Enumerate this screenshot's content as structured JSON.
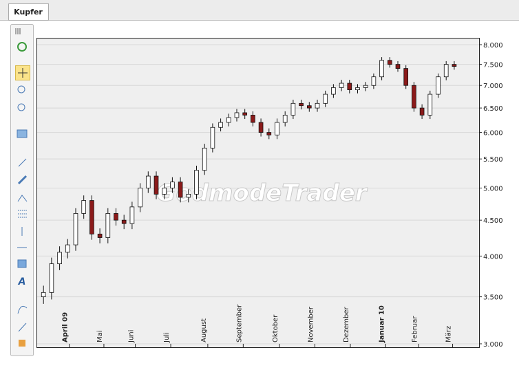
{
  "tab": "Kupfer",
  "chart_data": {
    "type": "candlestick",
    "watermark": "GodmodeTrader",
    "log_scale": true,
    "grid": true,
    "up_color": "#ffffff",
    "down_color": "#8b1a1a",
    "open": [
      3500,
      3550,
      3900,
      4050,
      4150,
      4600,
      4800,
      4300,
      4250,
      4600,
      4500,
      4450,
      4700,
      5000,
      5200,
      4900,
      5000,
      5100,
      4850,
      4900,
      5300,
      5700,
      6100,
      6200,
      6300,
      6400,
      6350,
      6200,
      6000,
      5950,
      6200,
      6350,
      6600,
      6550,
      6500,
      6600,
      6800,
      6950,
      7050,
      6900,
      6950,
      7000,
      7200,
      7600,
      7500,
      7400,
      7000,
      6500,
      6350,
      6800,
      7200,
      7500
    ],
    "high": [
      3630,
      3980,
      4130,
      4230,
      4680,
      4880,
      4880,
      4380,
      4680,
      4680,
      4580,
      4780,
      5080,
      5280,
      5280,
      5080,
      5180,
      5180,
      4980,
      5380,
      5780,
      6180,
      6280,
      6380,
      6480,
      6480,
      6430,
      6280,
      6080,
      6280,
      6430,
      6680,
      6680,
      6630,
      6680,
      6880,
      7030,
      7130,
      7130,
      7030,
      7080,
      7280,
      7680,
      7680,
      7580,
      7480,
      7080,
      6580,
      6880,
      7280,
      7580,
      7580
    ],
    "low": [
      3420,
      3470,
      3820,
      3970,
      4070,
      4520,
      4220,
      4170,
      4170,
      4420,
      4370,
      4370,
      4620,
      4920,
      4820,
      4820,
      4920,
      4770,
      4770,
      4820,
      5220,
      5620,
      6020,
      6120,
      6220,
      6270,
      6120,
      5920,
      5870,
      5870,
      6120,
      6270,
      6470,
      6420,
      6420,
      6520,
      6720,
      6870,
      6820,
      6820,
      6870,
      6920,
      7120,
      7420,
      7320,
      6920,
      6420,
      6270,
      6270,
      6720,
      7120,
      7370
    ],
    "close": [
      3550,
      3900,
      4050,
      4150,
      4600,
      4800,
      4300,
      4250,
      4600,
      4500,
      4450,
      4700,
      5000,
      5200,
      4900,
      5000,
      5100,
      4850,
      4900,
      5300,
      5700,
      6100,
      6200,
      6300,
      6400,
      6350,
      6200,
      6000,
      5950,
      6200,
      6350,
      6600,
      6550,
      6500,
      6600,
      6800,
      6950,
      7050,
      6900,
      6950,
      7000,
      7200,
      7600,
      7500,
      7400,
      7000,
      6500,
      6350,
      6800,
      7200,
      7500,
      7450
    ],
    "xlim": [
      -0.7,
      54
    ],
    "xticks": [
      {
        "value": 3.2,
        "label": "April 09"
      },
      {
        "value": 7.5,
        "label": "Mai"
      },
      {
        "value": 11.4,
        "label": "Juni"
      },
      {
        "value": 15.8,
        "label": "Juli"
      },
      {
        "value": 20.4,
        "label": "August"
      },
      {
        "value": 24.8,
        "label": "September"
      },
      {
        "value": 29.3,
        "label": "Oktober"
      },
      {
        "value": 33.7,
        "label": "November"
      },
      {
        "value": 38.1,
        "label": "Dezember"
      },
      {
        "value": 42.5,
        "label": "Januar 10"
      },
      {
        "value": 46.6,
        "label": "Februar"
      },
      {
        "value": 50.8,
        "label": "März"
      }
    ],
    "ylim": [
      3000,
      8000
    ],
    "yticks": [
      {
        "value": 3000,
        "label": "3.000"
      },
      {
        "value": 3500,
        "label": "3.500"
      },
      {
        "value": 4000,
        "label": "4.000"
      },
      {
        "value": 4500,
        "label": "4.500"
      },
      {
        "value": 5000,
        "label": "5.000"
      },
      {
        "value": 5500,
        "label": "5.500"
      },
      {
        "value": 6000,
        "label": "6.000"
      },
      {
        "value": 6500,
        "label": "6.500"
      },
      {
        "value": 7000,
        "label": "7.000"
      },
      {
        "value": 7500,
        "label": "7.500"
      },
      {
        "value": 8000,
        "label": "8.000"
      }
    ]
  }
}
